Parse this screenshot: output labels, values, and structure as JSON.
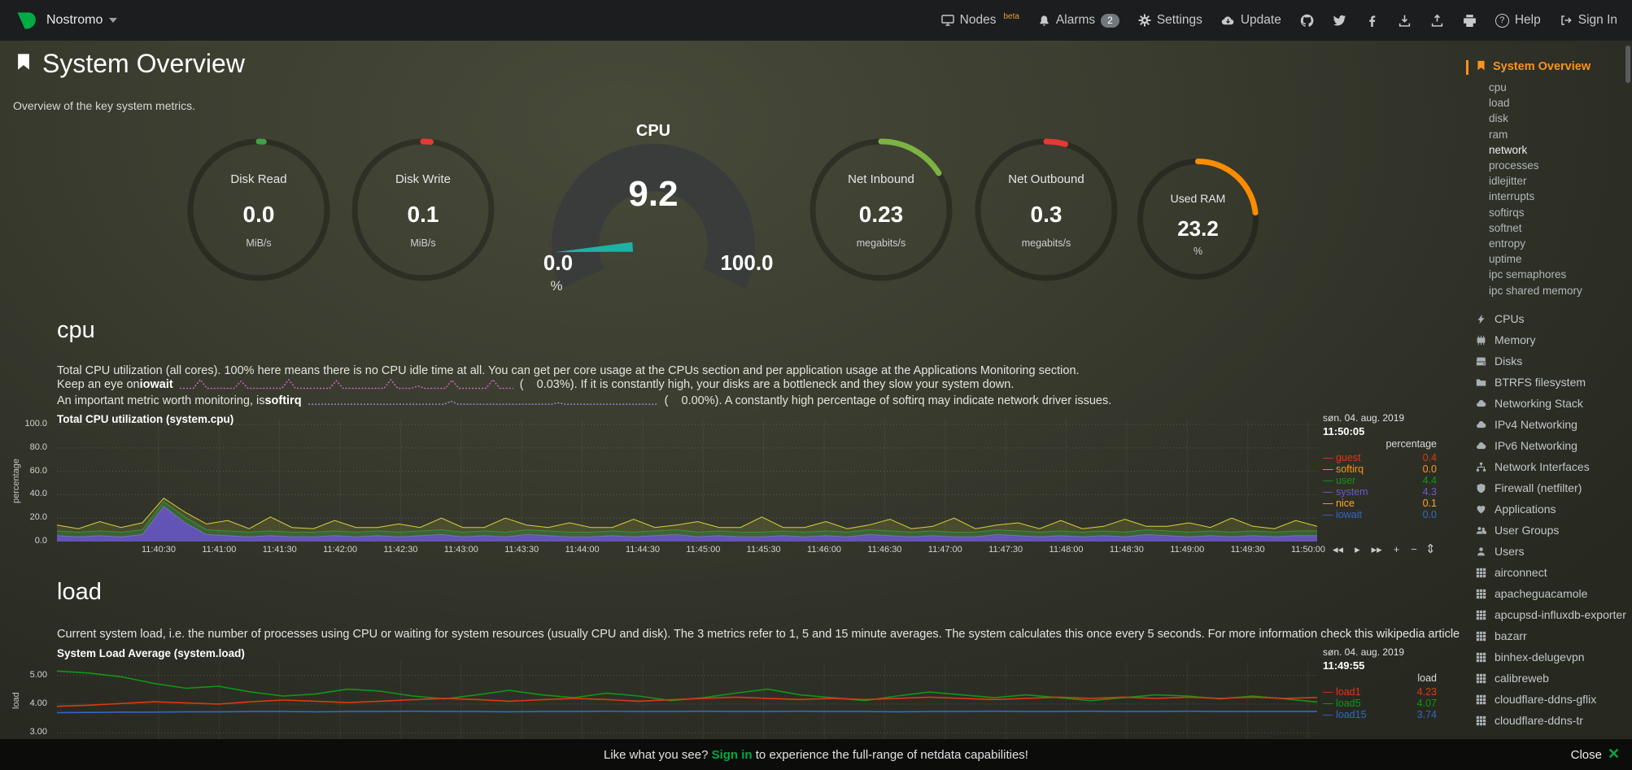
{
  "navbar": {
    "hostname": "Nostromo",
    "nodes_label": "Nodes",
    "nodes_badge": "beta",
    "alarms_label": "Alarms",
    "alarms_count": "2",
    "settings_label": "Settings",
    "update_label": "Update",
    "help_label": "Help",
    "help_q": "?",
    "signin_label": "Sign In"
  },
  "header": {
    "title": "System Overview",
    "subtitle": "Overview of the key system metrics."
  },
  "gauges": {
    "disk_read": {
      "title": "Disk Read",
      "value": "0.0",
      "units": "MiB/s",
      "color": "#43a047",
      "percent": 1.2
    },
    "disk_write": {
      "title": "Disk Write",
      "value": "0.1",
      "units": "MiB/s",
      "color": "#e53935",
      "percent": 1.8
    },
    "cpu": {
      "title": "CPU",
      "value": "9.2",
      "min": "0.0",
      "max": "100.0",
      "units": "%",
      "color": "#1eb2a6",
      "value_num": 9.2,
      "min_num": 0,
      "max_num": 100
    },
    "net_inbound": {
      "title": "Net Inbound",
      "value": "0.23",
      "units": "megabits/s",
      "color": "#7cb342",
      "percent": 16
    },
    "net_outbound": {
      "title": "Net Outbound",
      "value": "0.3",
      "units": "megabits/s",
      "color": "#e53935",
      "percent": 4.5
    },
    "used_ram": {
      "title": "Used RAM",
      "value": "23.2",
      "units": "%",
      "color": "#fb8c00",
      "percent": 23.2
    }
  },
  "cpu_section": {
    "heading": "cpu",
    "description": "Total CPU utilization (all cores). 100% here means there is no CPU idle time at all. You can get per core usage at the CPUs section and per application usage at the Applications Monitoring section.",
    "iowait_pre": "Keep an eye on ",
    "iowait_term": "iowait",
    "iowait_post": "(    0.03%). If it is constantly high, your disks are a bottleneck and they slow your system down.",
    "softirq_pre": "An important metric worth monitoring, is ",
    "softirq_term": "softirq",
    "softirq_post": "(    0.00%). A constantly high percentage of softirq may indicate network driver issues."
  },
  "sparklines": {
    "iowait": {
      "color": "#d36bcb",
      "values": [
        0.12,
        0.12,
        0.12,
        1,
        0.12,
        0.12,
        0.12,
        0.12,
        0.12,
        0.85,
        0.12,
        0.12,
        0.12,
        0.12,
        0.12,
        0.12,
        1,
        0.12,
        0.12,
        0.12,
        0.12,
        0.12,
        0.12,
        0.9,
        0.12,
        0.12,
        0.12,
        0.12,
        0.12,
        0.12,
        0.12,
        1,
        0.12,
        0.12,
        0.12,
        0.35,
        0.12,
        0.12,
        0.12,
        0.12,
        0.95,
        0.12,
        0.12,
        0.12,
        0.12,
        0.12,
        1,
        0.12,
        0.12,
        0.12
      ]
    },
    "softirq": {
      "color": "#9c8cd9",
      "values": [
        0.15,
        0.15,
        0.15,
        0.15,
        0.15,
        0.15,
        0.15,
        0.15,
        0.15,
        0.15,
        0.15,
        0.15,
        0.15,
        0.15,
        0.15,
        0.15,
        0.15,
        0.15,
        0.15,
        0.15,
        0.45,
        0.15,
        0.15,
        0.15,
        0.15,
        0.15,
        0.15,
        0.15,
        0.15,
        0.15,
        0.15,
        0.15,
        0.15,
        0.15,
        0.15,
        0.3,
        0.15,
        0.15,
        0.15,
        0.15,
        0.15,
        0.15,
        0.15,
        0.15,
        0.15,
        0.15,
        0.15,
        0.15,
        0.15,
        0.15
      ]
    }
  },
  "cpu_chart": {
    "title": "Total CPU utilization (system.cpu)",
    "date": "søn. 04. aug. 2019",
    "time": "11:50:05",
    "legend_header": "percentage",
    "legend": [
      {
        "name": "guest",
        "value": "0.4",
        "color": "#dc3912"
      },
      {
        "name": "softirq",
        "value": "0.0",
        "color": "#ff9900"
      },
      {
        "name": "user",
        "value": "4.4",
        "color": "#109618"
      },
      {
        "name": "system",
        "value": "4.3",
        "color": "#6a5acd"
      },
      {
        "name": "nice",
        "value": "0.1",
        "color": "#ffa726"
      },
      {
        "name": "iowait",
        "value": "0.0",
        "color": "#3366cc"
      }
    ],
    "toolbar": [
      "◂◂",
      "▸",
      "▸▸",
      "+",
      "−"
    ],
    "resize_handle": "⇕",
    "chart_data": {
      "type": "area",
      "stacked": true,
      "ylabel": "percentage",
      "y_ticks": [
        "100.0",
        "80.0",
        "60.0",
        "40.0",
        "20.0",
        "0.0"
      ],
      "ylim": [
        0,
        104.2
      ],
      "x_labels": [
        "11:40:30",
        "11:41:00",
        "11:41:30",
        "11:42:00",
        "11:42:30",
        "11:43:00",
        "11:43:30",
        "11:44:00",
        "11:44:30",
        "11:45:00",
        "11:45:30",
        "11:46:00",
        "11:46:30",
        "11:47:00",
        "11:47:30",
        "11:48:00",
        "11:48:30",
        "11:49:00",
        "11:49:30",
        "11:50:00"
      ],
      "layers": [
        {
          "name": "system",
          "color": "#8069e0",
          "fill": "rgba(104,88,197,0.9)",
          "values": [
            5,
            4,
            5,
            4,
            6,
            30,
            16,
            6,
            5,
            4,
            5,
            4,
            4,
            5,
            4,
            5,
            4,
            5,
            6,
            4,
            5,
            4,
            6,
            5,
            4,
            4,
            5,
            4,
            5,
            6,
            4,
            5,
            4,
            4,
            5,
            4,
            5,
            4,
            6,
            5,
            4,
            5,
            4,
            4,
            6,
            5,
            4,
            5,
            4,
            5,
            4,
            6,
            5,
            4,
            5,
            4,
            5,
            4,
            5,
            5
          ]
        },
        {
          "name": "user",
          "color": "#2f8f3a",
          "fill": "rgba(70,140,60,0.55)",
          "values": [
            9,
            8,
            9,
            8,
            10,
            34,
            21,
            10,
            9,
            8,
            9,
            8,
            8,
            9,
            8,
            9,
            8,
            9,
            10,
            8,
            9,
            8,
            10,
            9,
            8,
            8,
            9,
            8,
            9,
            10,
            8,
            9,
            8,
            8,
            9,
            8,
            9,
            8,
            10,
            9,
            8,
            9,
            8,
            8,
            10,
            9,
            8,
            9,
            8,
            9,
            8,
            10,
            9,
            8,
            9,
            8,
            9,
            8,
            9,
            9
          ]
        },
        {
          "name": "nice",
          "color": "#d6d13e",
          "fill": "rgba(190,185,60,0.18)",
          "values": [
            14,
            11,
            17,
            12,
            16,
            37,
            25,
            15,
            18,
            11,
            21,
            12,
            11,
            18,
            12,
            12,
            15,
            12,
            20,
            12,
            12,
            20,
            14,
            12,
            16,
            12,
            12,
            19,
            12,
            14,
            17,
            12,
            12,
            21,
            12,
            12,
            17,
            11,
            14,
            19,
            11,
            13,
            20,
            11,
            14,
            16,
            11,
            18,
            11,
            13,
            19,
            13,
            13,
            16,
            12,
            20,
            13,
            11,
            18,
            13
          ]
        }
      ]
    }
  },
  "load_section": {
    "heading": "load",
    "description": "Current system load, i.e. the number of processes using CPU or waiting for system resources (usually CPU and disk). The 3 metrics refer to 1, 5 and 15 minute averages. The system calculates this once every 5 seconds. For more information check this wikipedia article"
  },
  "load_chart": {
    "title": "System Load Average (system.load)",
    "date": "søn. 04. aug. 2019",
    "time": "11:49:55",
    "legend_header": "load",
    "legend": [
      {
        "name": "load1",
        "value": "4.23",
        "color": "#dc3912"
      },
      {
        "name": "load5",
        "value": "4.07",
        "color": "#109618"
      },
      {
        "name": "load15",
        "value": "3.74",
        "color": "#3366cc"
      }
    ],
    "chart_data": {
      "type": "line",
      "stacked": false,
      "ylabel": "load",
      "y_ticks": [
        "5.00",
        "4.00",
        "3.00"
      ],
      "ylim": [
        2.78,
        5.47
      ],
      "layers": [
        {
          "name": "load5",
          "color": "#109618",
          "values": [
            5.15,
            5.08,
            4.95,
            4.72,
            4.55,
            4.62,
            4.42,
            4.28,
            4.35,
            4.52,
            4.45,
            4.28,
            4.18,
            4.32,
            4.48,
            4.32,
            4.22,
            4.38,
            4.28,
            4.12,
            4.22,
            4.38,
            4.52,
            4.32,
            4.22,
            4.12,
            4.28,
            4.42,
            4.32,
            4.22,
            4.32,
            4.22,
            4.12,
            4.22,
            4.32,
            4.28,
            4.18,
            4.28,
            4.18,
            4.07
          ]
        },
        {
          "name": "load1",
          "color": "#dc3912",
          "values": [
            3.92,
            3.96,
            4.02,
            4.08,
            4.04,
            4.0,
            4.08,
            4.14,
            4.1,
            4.05,
            4.1,
            4.15,
            4.2,
            4.16,
            4.1,
            4.15,
            4.2,
            4.16,
            4.1,
            4.15,
            4.2,
            4.24,
            4.2,
            4.16,
            4.2,
            4.16,
            4.2,
            4.24,
            4.2,
            4.16,
            4.2,
            4.24,
            4.2,
            4.24,
            4.2,
            4.24,
            4.2,
            4.24,
            4.2,
            4.23
          ]
        },
        {
          "name": "load15",
          "color": "#3366cc",
          "values": [
            3.7,
            3.71,
            3.72,
            3.72,
            3.73,
            3.73,
            3.74,
            3.74,
            3.73,
            3.74,
            3.74,
            3.75,
            3.74,
            3.74,
            3.73,
            3.74,
            3.74,
            3.75,
            3.74,
            3.74,
            3.75,
            3.74,
            3.74,
            3.75,
            3.74,
            3.74,
            3.73,
            3.74,
            3.74,
            3.75,
            3.74,
            3.74,
            3.75,
            3.74,
            3.74,
            3.75,
            3.74,
            3.74,
            3.74,
            3.74
          ]
        }
      ]
    }
  },
  "sidebar": {
    "active_label": "System Overview",
    "subitems": [
      {
        "label": "cpu"
      },
      {
        "label": "load"
      },
      {
        "label": "disk"
      },
      {
        "label": "ram"
      },
      {
        "label": "network",
        "highlight": true
      },
      {
        "label": "processes"
      },
      {
        "label": "idlejitter"
      },
      {
        "label": "interrupts"
      },
      {
        "label": "softirqs"
      },
      {
        "label": "softnet"
      },
      {
        "label": "entropy"
      },
      {
        "label": "uptime"
      },
      {
        "label": "ipc semaphores"
      },
      {
        "label": "ipc shared memory"
      }
    ],
    "sections": [
      {
        "icon": "bolt",
        "label": "CPUs"
      },
      {
        "icon": "memory",
        "label": "Memory"
      },
      {
        "icon": "disk",
        "label": "Disks"
      },
      {
        "icon": "folder",
        "label": "BTRFS filesystem"
      },
      {
        "icon": "cloud",
        "label": "Networking Stack"
      },
      {
        "icon": "cloud",
        "label": "IPv4 Networking"
      },
      {
        "icon": "cloud",
        "label": "IPv6 Networking"
      },
      {
        "icon": "sitemap",
        "label": "Network Interfaces"
      },
      {
        "icon": "shield",
        "label": "Firewall (netfilter)"
      },
      {
        "icon": "heart",
        "label": "Applications"
      },
      {
        "icon": "users",
        "label": "User Groups"
      },
      {
        "icon": "user",
        "label": "Users"
      },
      {
        "icon": "grid",
        "label": "airconnect"
      },
      {
        "icon": "grid",
        "label": "apacheguacamole"
      },
      {
        "icon": "grid",
        "label": "apcupsd-influxdb-exporter"
      },
      {
        "icon": "grid",
        "label": "bazarr"
      },
      {
        "icon": "grid",
        "label": "binhex-delugevpn"
      },
      {
        "icon": "grid",
        "label": "calibreweb"
      },
      {
        "icon": "grid",
        "label": "cloudflare-ddns-gflix"
      },
      {
        "icon": "grid",
        "label": "cloudflare-ddns-tr"
      }
    ]
  },
  "bottom_bar": {
    "prompt_pre": "Like what you see? ",
    "signin": "Sign in",
    "prompt_post": " to experience the full-range of netdata capabilities!",
    "close_label": "Close",
    "accent_green": "#00ab44"
  }
}
